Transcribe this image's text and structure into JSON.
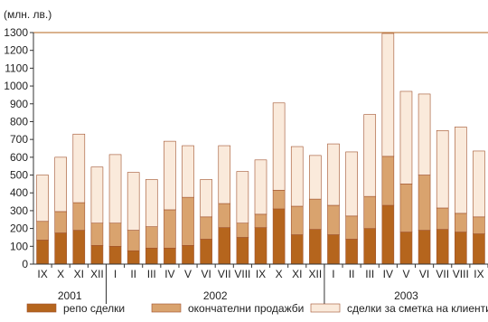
{
  "chart_data": {
    "type": "bar",
    "stacked": true,
    "unit_label": "(млн. лв.)",
    "ylim": [
      0,
      1300
    ],
    "yticks": [
      0,
      100,
      200,
      300,
      400,
      500,
      600,
      700,
      800,
      900,
      1000,
      1100,
      1200,
      1300
    ],
    "grid": false,
    "legend_position": "bottom",
    "categories": [
      "IX",
      "X",
      "XI",
      "XII",
      "I",
      "II",
      "III",
      "IV",
      "V",
      "VI",
      "VII",
      "VIII",
      "IX",
      "X",
      "XI",
      "XII",
      "I",
      "II",
      "III",
      "IV",
      "V",
      "VI",
      "VII",
      "VIII",
      "IX"
    ],
    "year_labels": [
      "2001",
      "2002",
      "2003"
    ],
    "year_groups": [
      {
        "label": "2001",
        "from": 0,
        "to": 3
      },
      {
        "label": "2002",
        "from": 4,
        "to": 15
      },
      {
        "label": "2003",
        "from": 16,
        "to": 24
      }
    ],
    "series": [
      {
        "name": "репо сделки",
        "color": "#b5651d",
        "values": [
          135,
          175,
          190,
          105,
          100,
          75,
          90,
          90,
          105,
          140,
          205,
          150,
          205,
          310,
          165,
          195,
          165,
          140,
          200,
          330,
          180,
          190,
          195,
          180,
          170
        ]
      },
      {
        "name": "окончателни продажби",
        "color": "#d9a36e",
        "values": [
          105,
          120,
          155,
          125,
          130,
          115,
          120,
          215,
          270,
          125,
          135,
          80,
          75,
          105,
          160,
          170,
          165,
          130,
          180,
          275,
          270,
          310,
          120,
          105,
          95
        ]
      },
      {
        "name": "сделки за сметка на клиенти",
        "color": "#faeadb",
        "values": [
          260,
          305,
          385,
          315,
          385,
          325,
          265,
          385,
          290,
          210,
          325,
          290,
          305,
          490,
          335,
          245,
          345,
          360,
          460,
          690,
          520,
          455,
          435,
          485,
          370
        ]
      }
    ]
  }
}
